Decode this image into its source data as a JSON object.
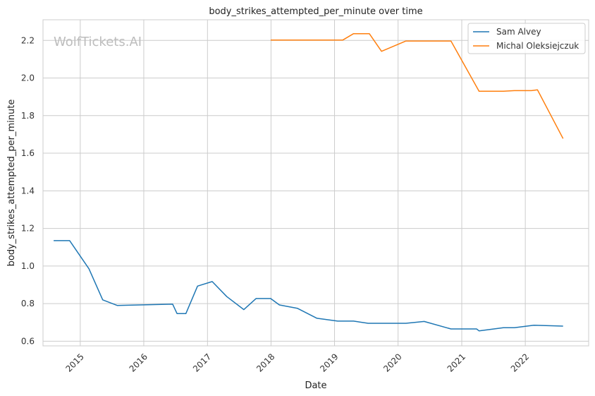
{
  "chart_data": {
    "type": "line",
    "title": "body_strikes_attempted_per_minute over time",
    "xlabel": "Date",
    "ylabel": "body_strikes_attempted_per_minute",
    "watermark": "WolfTickets.AI",
    "x_ticks": [
      "2015",
      "2016",
      "2017",
      "2018",
      "2019",
      "2020",
      "2021",
      "2022"
    ],
    "y_ticks": [
      "0.6",
      "0.8",
      "1.0",
      "1.2",
      "1.4",
      "1.6",
      "1.8",
      "2.0",
      "2.2"
    ],
    "xlim": [
      "2014-06-01",
      "2022-12-31"
    ],
    "ylim": [
      0.575,
      2.31
    ],
    "grid": true,
    "legend_position": "top-right",
    "series": [
      {
        "name": "Sam Alvey",
        "color": "#1f77b4",
        "points": [
          [
            "2014-08-01",
            1.135
          ],
          [
            "2014-11-01",
            1.135
          ],
          [
            "2015-02-20",
            0.985
          ],
          [
            "2015-05-10",
            0.82
          ],
          [
            "2015-08-01",
            0.79
          ],
          [
            "2016-06-15",
            0.797
          ],
          [
            "2016-07-10",
            0.747
          ],
          [
            "2016-08-30",
            0.747
          ],
          [
            "2016-11-05",
            0.893
          ],
          [
            "2017-01-28",
            0.917
          ],
          [
            "2017-04-22",
            0.837
          ],
          [
            "2017-07-29",
            0.768
          ],
          [
            "2017-10-07",
            0.827
          ],
          [
            "2017-12-30",
            0.827
          ],
          [
            "2018-02-18",
            0.793
          ],
          [
            "2018-06-01",
            0.775
          ],
          [
            "2018-09-22",
            0.722
          ],
          [
            "2019-01-19",
            0.707
          ],
          [
            "2019-04-20",
            0.707
          ],
          [
            "2019-07-13",
            0.695
          ],
          [
            "2020-02-15",
            0.695
          ],
          [
            "2020-05-30",
            0.705
          ],
          [
            "2020-10-31",
            0.665
          ],
          [
            "2021-03-27",
            0.665
          ],
          [
            "2021-04-10",
            0.655
          ],
          [
            "2021-08-28",
            0.672
          ],
          [
            "2021-10-30",
            0.672
          ],
          [
            "2022-02-19",
            0.685
          ],
          [
            "2022-08-06",
            0.68
          ]
        ]
      },
      {
        "name": "Michal Oleksiejczuk",
        "color": "#ff7f0e",
        "points": [
          [
            "2017-12-30",
            2.202
          ],
          [
            "2019-02-17",
            2.202
          ],
          [
            "2019-04-20",
            2.236
          ],
          [
            "2019-07-20",
            2.236
          ],
          [
            "2019-09-28",
            2.142
          ],
          [
            "2020-02-15",
            2.197
          ],
          [
            "2020-10-31",
            2.197
          ],
          [
            "2021-04-10",
            1.93
          ],
          [
            "2021-08-28",
            1.93
          ],
          [
            "2021-10-30",
            1.933
          ],
          [
            "2022-02-05",
            1.933
          ],
          [
            "2022-03-12",
            1.937
          ],
          [
            "2022-08-06",
            1.678
          ]
        ]
      }
    ]
  }
}
